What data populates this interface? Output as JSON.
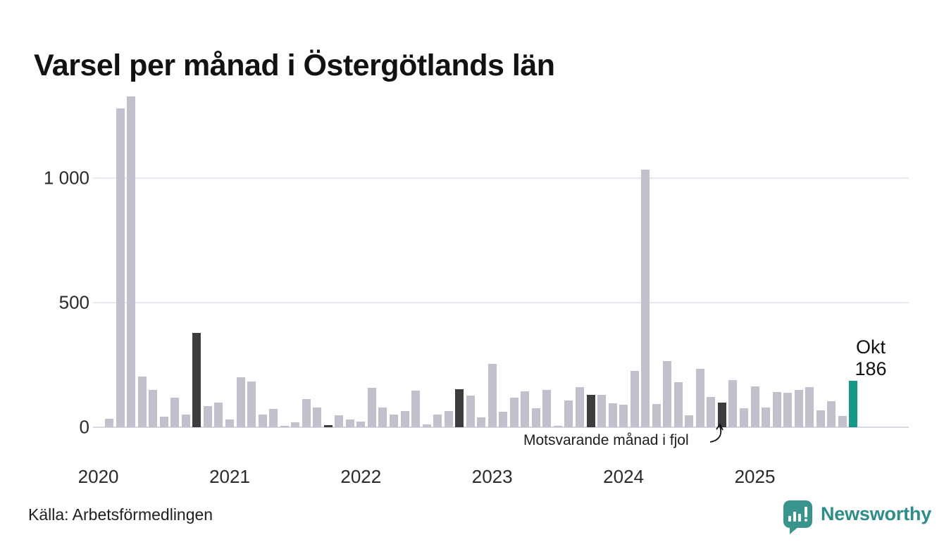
{
  "title": "Varsel per månad i Östergötlands län",
  "source": "Källa: Arbetsförmedlingen",
  "annotation": {
    "text": "Motsvarande månad i fjol"
  },
  "highlight_label": {
    "month": "Okt",
    "value": "186"
  },
  "logo": {
    "text": "Newsworthy"
  },
  "colors": {
    "bar": "#c3c0ce",
    "bar_dark": "#3d3d40",
    "bar_highlight": "#169a87",
    "grid": "#eae8f0",
    "baseline": "#d9d7e2",
    "logo_icon": "#3a948e",
    "logo_text": "#2e8d88",
    "title_text": "#121212"
  },
  "chart_data": {
    "type": "bar",
    "title": "Varsel per månad i Östergötlands län",
    "xlabel": "",
    "ylabel": "",
    "grid": "horizontal",
    "legend": "none",
    "ylim": [
      0,
      1378
    ],
    "yticks": [
      {
        "value": 0,
        "label": "0"
      },
      {
        "value": 500,
        "label": "500"
      },
      {
        "value": 1000,
        "label": "1 000"
      }
    ],
    "year_ticks": [
      {
        "label": "2020",
        "month_index": 0
      },
      {
        "label": "2021",
        "month_index": 12
      },
      {
        "label": "2022",
        "month_index": 24
      },
      {
        "label": "2023",
        "month_index": 36
      },
      {
        "label": "2024",
        "month_index": 48
      },
      {
        "label": "2025",
        "month_index": 60
      }
    ],
    "months": [
      "2020-01",
      "2020-02",
      "2020-03",
      "2020-04",
      "2020-05",
      "2020-06",
      "2020-07",
      "2020-08",
      "2020-09",
      "2020-10",
      "2020-11",
      "2020-12",
      "2021-01",
      "2021-02",
      "2021-03",
      "2021-04",
      "2021-05",
      "2021-06",
      "2021-07",
      "2021-08",
      "2021-09",
      "2021-10",
      "2021-11",
      "2021-12",
      "2022-01",
      "2022-02",
      "2022-03",
      "2022-04",
      "2022-05",
      "2022-06",
      "2022-07",
      "2022-08",
      "2022-09",
      "2022-10",
      "2022-11",
      "2022-12",
      "2023-01",
      "2023-02",
      "2023-03",
      "2023-04",
      "2023-05",
      "2023-06",
      "2023-07",
      "2023-08",
      "2023-09",
      "2023-10",
      "2023-11",
      "2023-12",
      "2024-01",
      "2024-02",
      "2024-03",
      "2024-04",
      "2024-05",
      "2024-06",
      "2024-07",
      "2024-08",
      "2024-09",
      "2024-10",
      "2024-11",
      "2024-12",
      "2025-01",
      "2025-02",
      "2025-03",
      "2025-04",
      "2025-05",
      "2025-06",
      "2025-07",
      "2025-08",
      "2025-09",
      "2025-10"
    ],
    "values": [
      0,
      35,
      1280,
      1330,
      205,
      150,
      42,
      120,
      50,
      380,
      85,
      100,
      30,
      200,
      185,
      52,
      74,
      7,
      20,
      113,
      78,
      10,
      49,
      30,
      24,
      158,
      80,
      50,
      66,
      146,
      11,
      50,
      66,
      153,
      127,
      40,
      255,
      61,
      118,
      143,
      76,
      149,
      7,
      109,
      160,
      130,
      130,
      96,
      90,
      225,
      1035,
      93,
      266,
      181,
      47,
      236,
      121,
      99,
      190,
      76,
      165,
      80,
      142,
      139,
      151,
      160,
      68,
      104,
      44,
      186
    ],
    "dark_indices": [
      9,
      21,
      33,
      45,
      57
    ],
    "highlight_index": 69,
    "dark_meaning": "Motsvarande månad i fjol",
    "highlight_value_label": "Okt 186"
  }
}
